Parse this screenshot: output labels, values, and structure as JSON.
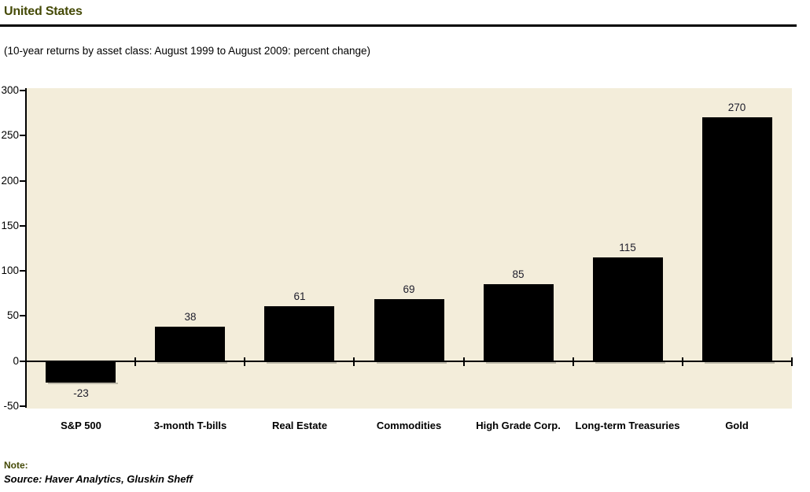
{
  "header": {
    "title": "United States",
    "subtitle": "(10-year returns by asset class: August 1999 to August 2009: percent change)"
  },
  "chart_data": {
    "type": "bar",
    "title": "United States",
    "subtitle": "(10-year returns by asset class: August 1999 to August 2009: percent change)",
    "categories": [
      "S&P 500",
      "3-month T-bills",
      "Real Estate",
      "Commodities",
      "High Grade Corp.",
      "Long-term Treasuries",
      "Gold"
    ],
    "values": [
      -23,
      38,
      61,
      69,
      85,
      115,
      270
    ],
    "value_labels": [
      "-23",
      "38",
      "61",
      "69",
      "85",
      "115",
      "270"
    ],
    "xlabel": "",
    "ylabel": "",
    "ylim": [
      -50,
      300
    ],
    "yticks": [
      300,
      250,
      200,
      150,
      100,
      50,
      0,
      -50
    ],
    "grid": false,
    "legend": false,
    "data_labels": true,
    "bar_color": "#000000"
  },
  "footer": {
    "note_label": "Note:",
    "source": "Source: Haver Analytics, Gluskin Sheff"
  },
  "colors": {
    "title": "#454a07",
    "note": "#454a07",
    "text": "#000000",
    "axis": "#000000",
    "value_label": "#1d1d2b",
    "plot_bg": "#f3edda",
    "bar": "#000000",
    "page_bg": "#ffffff"
  }
}
